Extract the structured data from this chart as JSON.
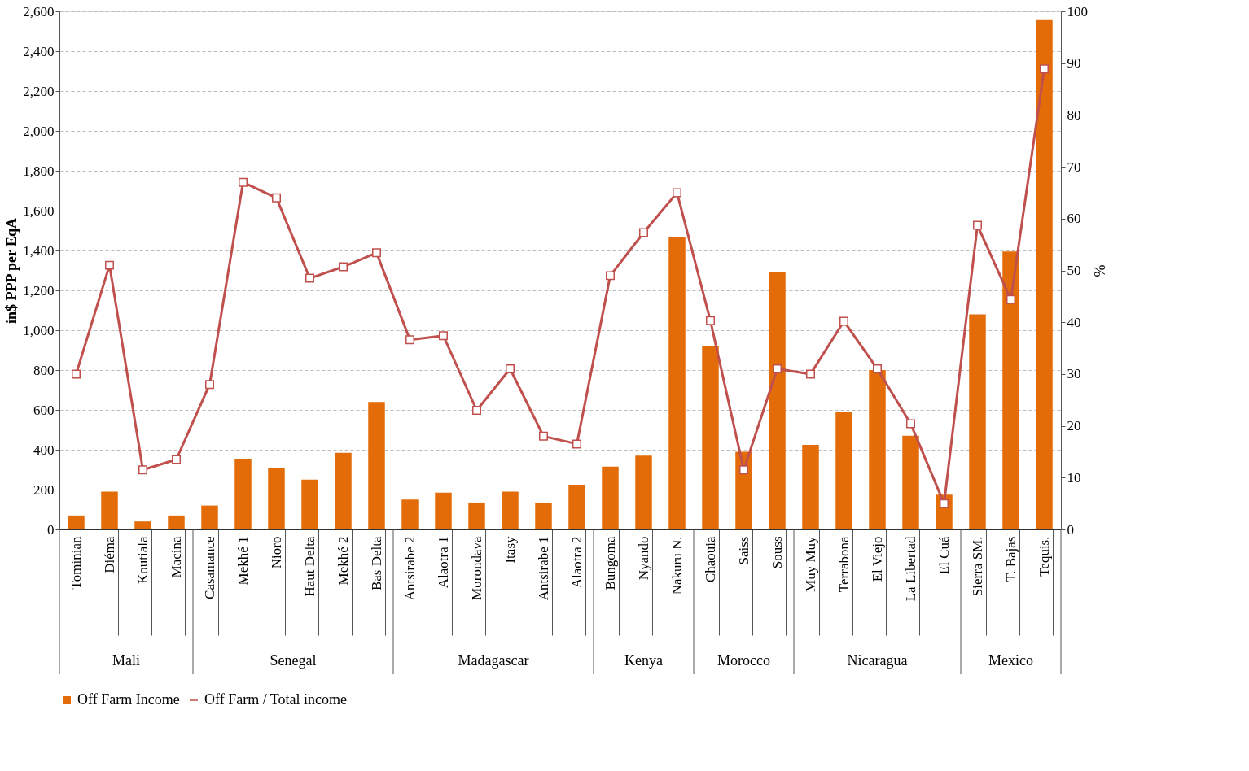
{
  "chart_data": {
    "type": "bar",
    "ylabel": "in$ PPP per EqA",
    "y2label": "%",
    "categories": [
      "Tominian",
      "Diéma",
      "Koutiala",
      "Macina",
      "Casamance",
      "Mekhé 1",
      "Nioro",
      "Haut Delta",
      "Mekhé 2",
      "Bas Delta",
      "Antsirabe 2",
      "Alaotra 1",
      "Morondava",
      "Itasy",
      "Antsirabe 1",
      "Alaotra 2",
      "Bungoma",
      "Nyando",
      "Nakuru N.",
      "Chaouia",
      "Saiss",
      "Souss",
      "Muy Muy",
      "Terrabona",
      "El Viejo",
      "La Libertad",
      "El Cuá",
      "Sierra SM.",
      "T. Bajas",
      "Tequis."
    ],
    "series": [
      {
        "name": "Off Farm Income",
        "color": "#e36c09",
        "values": [
          70,
          190,
          40,
          70,
          120,
          355,
          310,
          250,
          385,
          640,
          150,
          185,
          135,
          190,
          135,
          225,
          315,
          370,
          1465,
          920,
          390,
          1290,
          425,
          590,
          800,
          470,
          175,
          1080,
          1395,
          2560
        ]
      },
      {
        "name": "Off Farm / Total income",
        "type": "line",
        "axis": "y2",
        "color": "#c0504d",
        "marker": "square",
        "values": [
          30,
          51,
          11.5,
          13.5,
          28,
          67,
          64,
          48.5,
          50.7,
          53.4,
          36.6,
          37.4,
          23,
          31,
          18,
          16.5,
          49,
          57.3,
          65,
          40.3,
          11.5,
          31,
          30,
          40.2,
          31,
          20.4,
          5,
          58.7,
          44.4,
          88.9
        ]
      }
    ],
    "ylim": [
      0,
      2600
    ],
    "yticks": [
      0,
      200,
      400,
      600,
      800,
      {
        "value": 1000,
        "label": "1,000"
      },
      {
        "value": 1200,
        "label": "1,200"
      },
      {
        "value": 1400,
        "label": "1,400"
      },
      {
        "value": 1600,
        "label": "1,600"
      },
      {
        "value": 1800,
        "label": "1,800"
      },
      {
        "value": 2000,
        "label": "2,000"
      },
      {
        "value": 2200,
        "label": "2,200"
      },
      {
        "value": 2400,
        "label": "2,400"
      },
      {
        "value": 2600,
        "label": "2,600"
      }
    ],
    "y2lim": [
      0,
      100
    ],
    "y2ticks": [
      0,
      10,
      20,
      30,
      40,
      50,
      60,
      70,
      80,
      90,
      100
    ],
    "grid": "y",
    "legend": "bottom",
    "annotations": [
      "Mali",
      "Senegal",
      "Madagascar",
      "Kenya",
      "Morocco",
      "Nicaragua",
      "Mexico"
    ]
  }
}
